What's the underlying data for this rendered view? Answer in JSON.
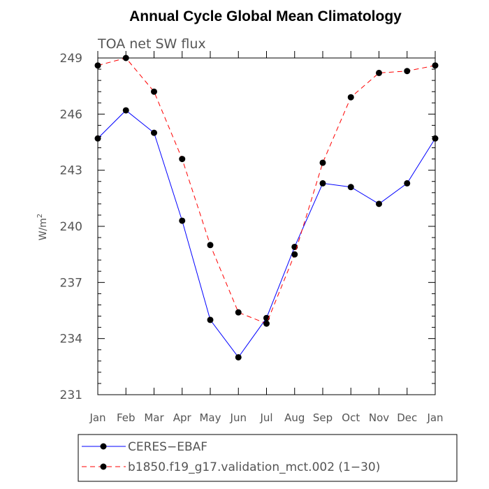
{
  "chart_data": {
    "type": "line",
    "title": "Annual Cycle Global Mean Climatology",
    "subtitle": "TOA  net  SW  flux",
    "xlabel": "",
    "ylabel": "W/m",
    "ylabel_superscript": "2",
    "categories": [
      "Jan",
      "Feb",
      "Mar",
      "Apr",
      "May",
      "Jun",
      "Jul",
      "Aug",
      "Sep",
      "Oct",
      "Nov",
      "Dec",
      "Jan"
    ],
    "ylim": [
      231,
      249
    ],
    "yticks": [
      231,
      234,
      237,
      240,
      243,
      246,
      249
    ],
    "grid": false,
    "legend_position": "bottom",
    "series": [
      {
        "name": "CERES−EBAF",
        "color": "#0000ff",
        "dash": "solid",
        "marker": "circle",
        "values": [
          244.7,
          246.2,
          245.0,
          240.3,
          235.0,
          233.0,
          235.1,
          238.9,
          242.3,
          242.1,
          241.2,
          242.3,
          244.7
        ]
      },
      {
        "name": "b1850.f19_g17.validation_mct.002 (1−30)",
        "color": "#ff0000",
        "dash": "dashed",
        "marker": "circle",
        "values": [
          248.6,
          249.0,
          247.2,
          243.6,
          239.0,
          235.4,
          234.8,
          238.5,
          243.4,
          246.9,
          248.2,
          248.3,
          248.6
        ]
      }
    ]
  }
}
